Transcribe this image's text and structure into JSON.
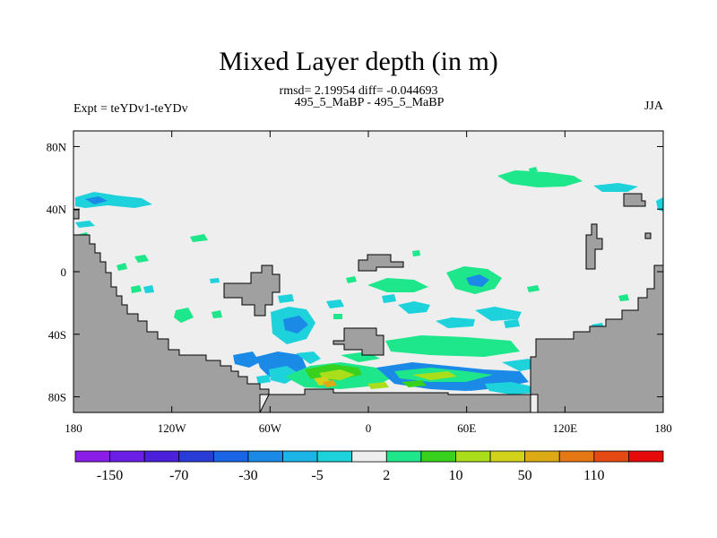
{
  "chart_data": {
    "type": "heatmap",
    "title": "Mixed Layer depth (in m)",
    "subtitle": "rmsd= 2.19954 diff= -0.044693",
    "left_label": "Expt = teYDv1-teYDv",
    "center_label": "495_5_MaBP - 495_5_MaBP",
    "right_label": "JJA",
    "x_axis": {
      "range": [
        -180,
        180
      ],
      "ticks": [
        {
          "value": -180,
          "label": "180"
        },
        {
          "value": -120,
          "label": "120W"
        },
        {
          "value": -60,
          "label": "60W"
        },
        {
          "value": 0,
          "label": "0"
        },
        {
          "value": 60,
          "label": "60E"
        },
        {
          "value": 120,
          "label": "120E"
        },
        {
          "value": 180,
          "label": "180"
        }
      ]
    },
    "y_axis": {
      "range": [
        -90,
        90
      ],
      "ticks": [
        {
          "value": 80,
          "label": "80N"
        },
        {
          "value": 40,
          "label": "40N"
        },
        {
          "value": 0,
          "label": "0"
        },
        {
          "value": -40,
          "label": "40S"
        },
        {
          "value": -80,
          "label": "80S"
        }
      ]
    },
    "colorbar": {
      "colors": [
        "#8a1ee6",
        "#6a1ee6",
        "#4a20dc",
        "#2a3cd8",
        "#1a64e6",
        "#1a8ae6",
        "#1ab4e6",
        "#1ed2dc",
        "#eeeeee",
        "#1ee68a",
        "#38d21e",
        "#aade1a",
        "#d2d21a",
        "#dcaa14",
        "#e67814",
        "#e64a14",
        "#e60a0a"
      ],
      "labels": [
        "-150",
        "-70",
        "-30",
        "-5",
        "2",
        "10",
        "50",
        "110"
      ]
    },
    "colors": {
      "land": "#a0a0a0",
      "ocean_background": "#eeeeee",
      "small_neg": "#1ed2dc",
      "mid_neg": "#1a8ae6",
      "small_pos": "#1ee68a",
      "mid_pos": "#38d21e",
      "large_pos": "#aade1a",
      "very_large_pos": "#d2d21a",
      "extreme_pos": "#dcaa14"
    }
  }
}
